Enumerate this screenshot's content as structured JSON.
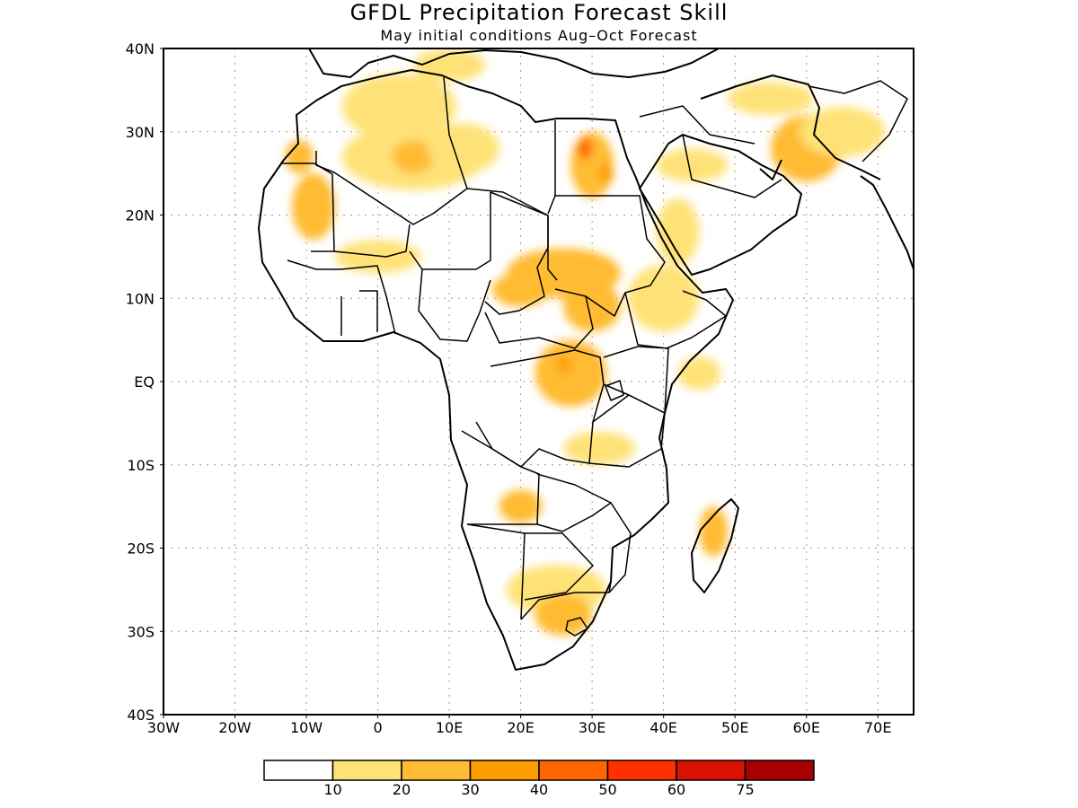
{
  "title": "GFDL Precipitation Forecast Skill",
  "subtitle": "May initial conditions  Aug–Oct Forecast",
  "map": {
    "lon_range": [
      -30,
      75
    ],
    "lat_range": [
      -40,
      40
    ],
    "lat_ticks": [
      {
        "value": 40,
        "label": "40N"
      },
      {
        "value": 30,
        "label": "30N"
      },
      {
        "value": 20,
        "label": "20N"
      },
      {
        "value": 10,
        "label": "10N"
      },
      {
        "value": 0,
        "label": "EQ"
      },
      {
        "value": -10,
        "label": "10S"
      },
      {
        "value": -20,
        "label": "20S"
      },
      {
        "value": -30,
        "label": "30S"
      },
      {
        "value": -40,
        "label": "40S"
      }
    ],
    "lon_ticks": [
      {
        "value": -30,
        "label": "30W"
      },
      {
        "value": -20,
        "label": "20W"
      },
      {
        "value": -10,
        "label": "10W"
      },
      {
        "value": 0,
        "label": "0"
      },
      {
        "value": 10,
        "label": "10E"
      },
      {
        "value": 20,
        "label": "20E"
      },
      {
        "value": 30,
        "label": "30E"
      },
      {
        "value": 40,
        "label": "40E"
      },
      {
        "value": 50,
        "label": "50E"
      },
      {
        "value": 60,
        "label": "60E"
      },
      {
        "value": 70,
        "label": "70E"
      }
    ],
    "grid": true,
    "skill_areas": [
      {
        "lon": 3,
        "lat": 33,
        "rx": 8,
        "ry": 4,
        "level": 1
      },
      {
        "lon": 5,
        "lat": 27,
        "rx": 10,
        "ry": 4,
        "level": 1
      },
      {
        "lon": 5,
        "lat": 27,
        "rx": 3,
        "ry": 2,
        "level": 2
      },
      {
        "lon": -9,
        "lat": 21,
        "rx": 3,
        "ry": 4,
        "level": 2
      },
      {
        "lon": -11,
        "lat": 27,
        "rx": 2,
        "ry": 2,
        "level": 2
      },
      {
        "lon": 12,
        "lat": 28,
        "rx": 5,
        "ry": 3,
        "level": 1
      },
      {
        "lon": 0,
        "lat": 15,
        "rx": 6,
        "ry": 2,
        "level": 1
      },
      {
        "lon": 30,
        "lat": 26,
        "rx": 3,
        "ry": 4,
        "level": 2
      },
      {
        "lon": 29,
        "lat": 28,
        "rx": 1,
        "ry": 1.3,
        "level": 4
      },
      {
        "lon": 32,
        "lat": 25,
        "rx": 1,
        "ry": 1.2,
        "level": 3
      },
      {
        "lon": 26,
        "lat": 13,
        "rx": 8,
        "ry": 3,
        "level": 2
      },
      {
        "lon": 20,
        "lat": 11,
        "rx": 4,
        "ry": 2,
        "level": 2
      },
      {
        "lon": 30,
        "lat": 9,
        "rx": 4,
        "ry": 3,
        "level": 2
      },
      {
        "lon": 40,
        "lat": 10,
        "rx": 5,
        "ry": 4,
        "level": 1
      },
      {
        "lon": 42,
        "lat": 18,
        "rx": 3,
        "ry": 4,
        "level": 1
      },
      {
        "lon": 27,
        "lat": 1,
        "rx": 5,
        "ry": 4,
        "level": 2
      },
      {
        "lon": 26,
        "lat": 2,
        "rx": 1,
        "ry": 1,
        "level": 3
      },
      {
        "lon": 31,
        "lat": -8,
        "rx": 5,
        "ry": 2,
        "level": 1
      },
      {
        "lon": 45,
        "lat": 1,
        "rx": 3,
        "ry": 2,
        "level": 1
      },
      {
        "lon": 20,
        "lat": -15,
        "rx": 3,
        "ry": 2,
        "level": 2
      },
      {
        "lon": 25,
        "lat": -25,
        "rx": 7,
        "ry": 3,
        "level": 1
      },
      {
        "lon": 26,
        "lat": -28,
        "rx": 4,
        "ry": 2.5,
        "level": 2
      },
      {
        "lon": 47,
        "lat": -18,
        "rx": 2,
        "ry": 3,
        "level": 2
      },
      {
        "lon": 60,
        "lat": 28,
        "rx": 5,
        "ry": 4,
        "level": 2
      },
      {
        "lon": 65,
        "lat": 30,
        "rx": 6,
        "ry": 3,
        "level": 1
      },
      {
        "lon": 55,
        "lat": 34,
        "rx": 6,
        "ry": 2,
        "level": 1
      },
      {
        "lon": 44,
        "lat": 26,
        "rx": 5,
        "ry": 2,
        "level": 1
      },
      {
        "lon": 10,
        "lat": 38,
        "rx": 5,
        "ry": 2,
        "level": 1
      }
    ]
  },
  "colorbar": {
    "labels": [
      "10",
      "20",
      "30",
      "40",
      "50",
      "60",
      "75"
    ],
    "colors": [
      "#ffffff",
      "#ffe277",
      "#ffbb33",
      "#ff9d00",
      "#ff6500",
      "#ff3000",
      "#d91100",
      "#a60000"
    ]
  }
}
